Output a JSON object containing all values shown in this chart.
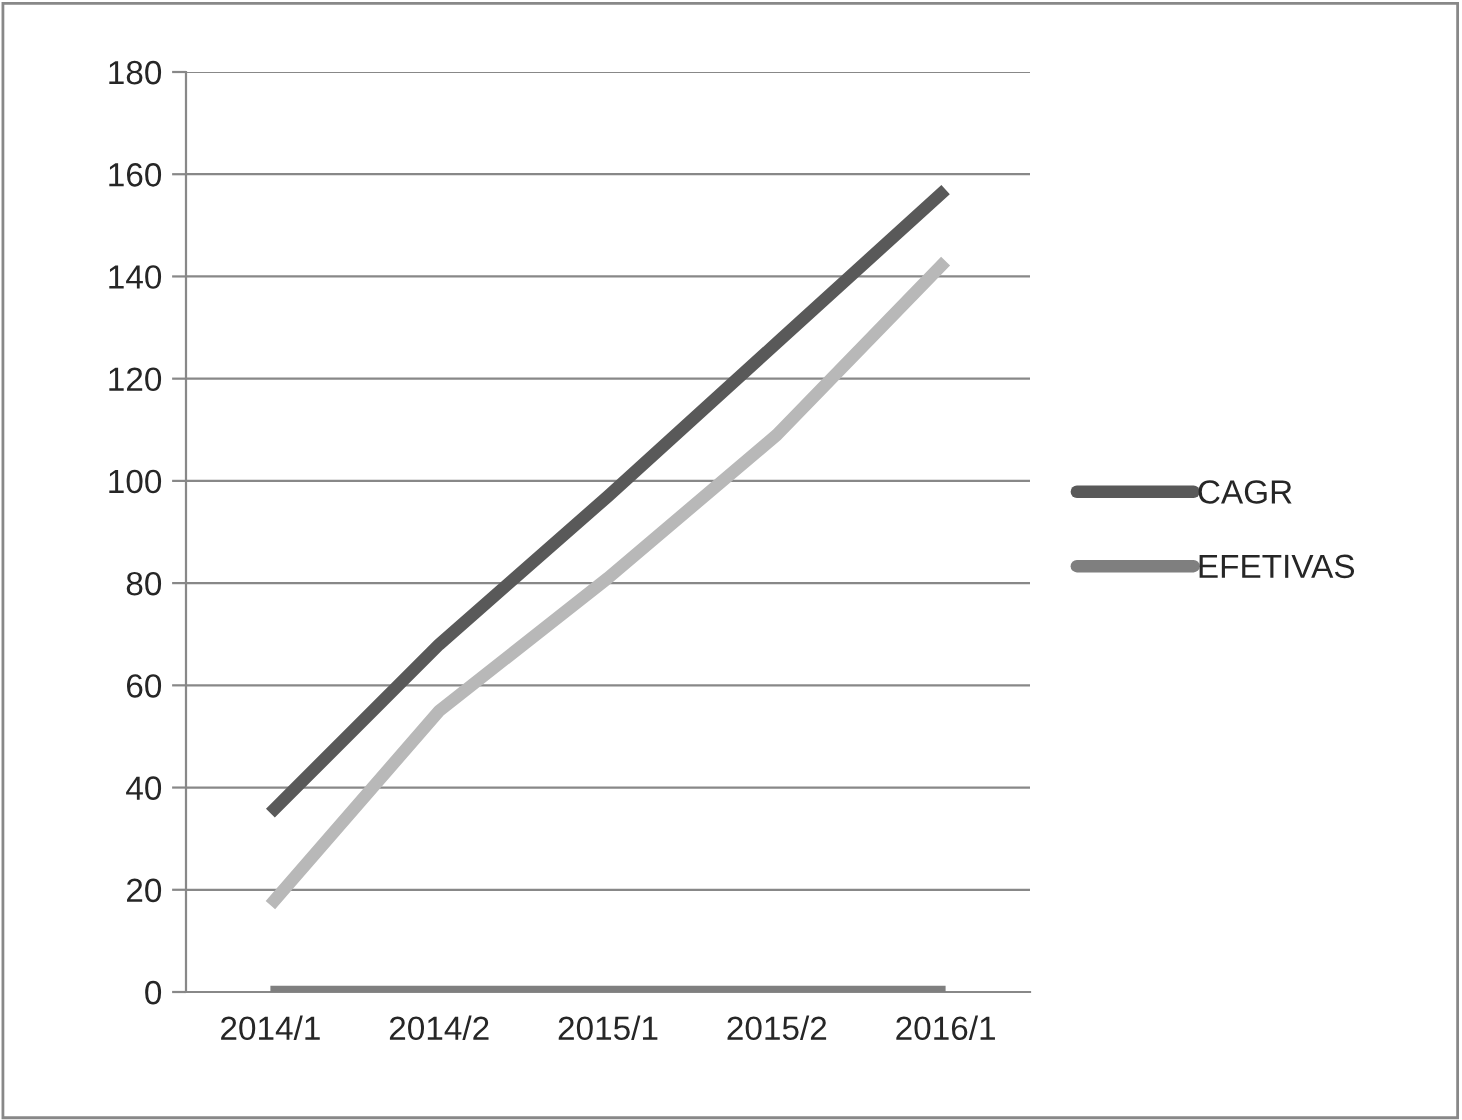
{
  "chart_data": {
    "type": "line",
    "categories": [
      "2014/1",
      "2014/2",
      "2015/1",
      "2015/2",
      "2016/1"
    ],
    "series": [
      {
        "name": "CAGR",
        "color": "#595959",
        "values": [
          35,
          68,
          97,
          127,
          157
        ]
      },
      {
        "color": "#b8b8b8",
        "values": [
          17,
          55,
          81,
          109,
          143
        ]
      },
      {
        "name": "EFETIVAS",
        "color": "#7f7f7f",
        "values": [
          0,
          0,
          0,
          0,
          0
        ]
      }
    ],
    "ylim": [
      0,
      180
    ],
    "yticks": [
      0,
      20,
      40,
      60,
      80,
      100,
      120,
      140,
      160,
      180
    ],
    "grid": "y",
    "legend": "right",
    "marker": "none",
    "line_style": "solid"
  }
}
